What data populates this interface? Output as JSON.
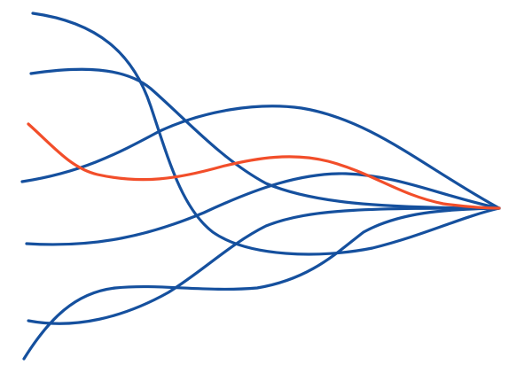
{
  "illustration": {
    "colors": {
      "background": "#ffffff",
      "primary_line": "#15509e",
      "highlight_line": "#f24e2a"
    },
    "lines": [
      {
        "color_key": "primary_line"
      },
      {
        "color_key": "primary_line"
      },
      {
        "color_key": "primary_line"
      },
      {
        "color_key": "primary_line"
      },
      {
        "color_key": "primary_line"
      },
      {
        "color_key": "primary_line"
      },
      {
        "color_key": "highlight_line"
      }
    ]
  }
}
